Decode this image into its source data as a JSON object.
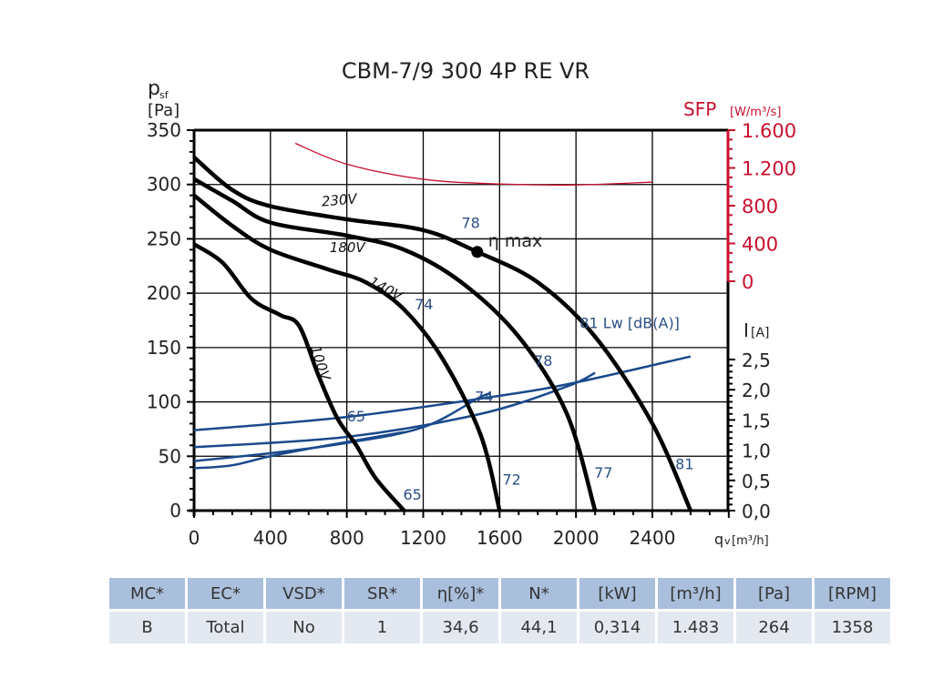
{
  "chart_data": {
    "type": "line",
    "title": "CBM-7/9 300 4P RE VR",
    "xlabel": "qv [m3/h]",
    "ylabel": "psf [Pa]",
    "xlim": [
      0,
      2800
    ],
    "ylim": [
      0,
      350
    ],
    "x_ticks": [
      0,
      400,
      800,
      1200,
      1600,
      2000,
      2400
    ],
    "y_ticks": [
      0,
      50,
      100,
      150,
      200,
      250,
      300,
      350
    ],
    "grid": true,
    "sfp_axis": {
      "label": "SFP",
      "unit": "[W/m3/s]",
      "ticks": [
        "0",
        "400",
        "800",
        "1.200",
        "1.600"
      ],
      "range": [
        0,
        1600
      ],
      "color": "#c8102e"
    },
    "current_axis": {
      "label": "I",
      "unit": "[A]",
      "ticks": [
        "0,0",
        "0,5",
        "1,0",
        "1,5",
        "2,0",
        "2,5"
      ],
      "range": [
        0,
        3.2
      ]
    },
    "pressure_series": [
      {
        "name": "230V",
        "points": [
          [
            0,
            325
          ],
          [
            200,
            295
          ],
          [
            400,
            280
          ],
          [
            800,
            268
          ],
          [
            1200,
            258
          ],
          [
            1483,
            238
          ],
          [
            1800,
            210
          ],
          [
            2100,
            160
          ],
          [
            2400,
            80
          ],
          [
            2600,
            0
          ]
        ]
      },
      {
        "name": "180V",
        "points": [
          [
            0,
            305
          ],
          [
            200,
            285
          ],
          [
            400,
            265
          ],
          [
            800,
            253
          ],
          [
            1100,
            240
          ],
          [
            1400,
            210
          ],
          [
            1700,
            160
          ],
          [
            1950,
            90
          ],
          [
            2100,
            0
          ]
        ]
      },
      {
        "name": "140V",
        "points": [
          [
            0,
            290
          ],
          [
            200,
            262
          ],
          [
            400,
            240
          ],
          [
            700,
            222
          ],
          [
            900,
            210
          ],
          [
            1100,
            185
          ],
          [
            1300,
            140
          ],
          [
            1500,
            70
          ],
          [
            1600,
            0
          ]
        ]
      },
      {
        "name": "100V",
        "points": [
          [
            0,
            245
          ],
          [
            150,
            228
          ],
          [
            300,
            195
          ],
          [
            450,
            180
          ],
          [
            550,
            170
          ],
          [
            650,
            125
          ],
          [
            750,
            85
          ],
          [
            850,
            60
          ],
          [
            950,
            30
          ],
          [
            1100,
            0
          ]
        ]
      }
    ],
    "sfp_series": {
      "name": "SFP",
      "points": [
        [
          530,
          1460
        ],
        [
          800,
          1240
        ],
        [
          1200,
          1080
        ],
        [
          1600,
          1030
        ],
        [
          2000,
          1020
        ],
        [
          2400,
          1050
        ]
      ]
    },
    "current_series": [
      {
        "name": "230V",
        "points": [
          [
            0,
            1.33
          ],
          [
            800,
            1.55
          ],
          [
            1600,
            1.9
          ],
          [
            2000,
            2.12
          ],
          [
            2600,
            2.55
          ]
        ]
      },
      {
        "name": "180V",
        "points": [
          [
            0,
            1.05
          ],
          [
            800,
            1.22
          ],
          [
            1500,
            1.6
          ],
          [
            1950,
            2.05
          ],
          [
            2100,
            2.28
          ]
        ]
      },
      {
        "name": "140V",
        "points": [
          [
            0,
            0.82
          ],
          [
            400,
            0.95
          ],
          [
            800,
            1.12
          ],
          [
            1200,
            1.38
          ],
          [
            1500,
            1.88
          ],
          [
            1550,
            1.92
          ]
        ]
      },
      {
        "name": "100V",
        "points": [
          [
            0,
            0.7
          ],
          [
            200,
            0.75
          ],
          [
            400,
            0.9
          ],
          [
            700,
            1.08
          ],
          [
            1100,
            1.3
          ]
        ]
      }
    ],
    "eta_max": {
      "label": "η max",
      "x": 1483,
      "y": 238
    },
    "annotations": [
      {
        "text": "230V",
        "x": 670,
        "y": 280,
        "rotate": -5
      },
      {
        "text": "180V",
        "x": 710,
        "y": 238,
        "rotate": 0
      },
      {
        "text": "140V",
        "x": 910,
        "y": 208,
        "rotate": 28
      },
      {
        "text": "100V",
        "x": 610,
        "y": 150,
        "rotate": 72
      },
      {
        "text": "78",
        "x": 1400,
        "y": 260,
        "color": "blue"
      },
      {
        "text": "74",
        "x": 1155,
        "y": 185,
        "color": "blue"
      },
      {
        "text": "81 Lw [dB(A)]",
        "x": 2020,
        "y": 168,
        "color": "blue"
      },
      {
        "text": "78",
        "x": 1780,
        "y": 133,
        "color": "blue"
      },
      {
        "text": "74",
        "x": 1470,
        "y": 100,
        "color": "blue"
      },
      {
        "text": "65",
        "x": 800,
        "y": 82,
        "color": "blue"
      },
      {
        "text": "65",
        "x": 1095,
        "y": 10,
        "color": "blue"
      },
      {
        "text": "72",
        "x": 1615,
        "y": 24,
        "color": "blue"
      },
      {
        "text": "77",
        "x": 2095,
        "y": 30,
        "color": "blue"
      },
      {
        "text": "81",
        "x": 2520,
        "y": 38,
        "color": "blue"
      }
    ]
  },
  "table": {
    "headers": [
      "MC*",
      "EC*",
      "VSD*",
      "SR*",
      "η[%]*",
      "N*",
      "[kW]",
      "[m³/h]",
      "[Pa]",
      "[RPM]"
    ],
    "values": [
      "B",
      "Total",
      "No",
      "1",
      "34,6",
      "44,1",
      "0,314",
      "1.483",
      "264",
      "1358"
    ]
  }
}
